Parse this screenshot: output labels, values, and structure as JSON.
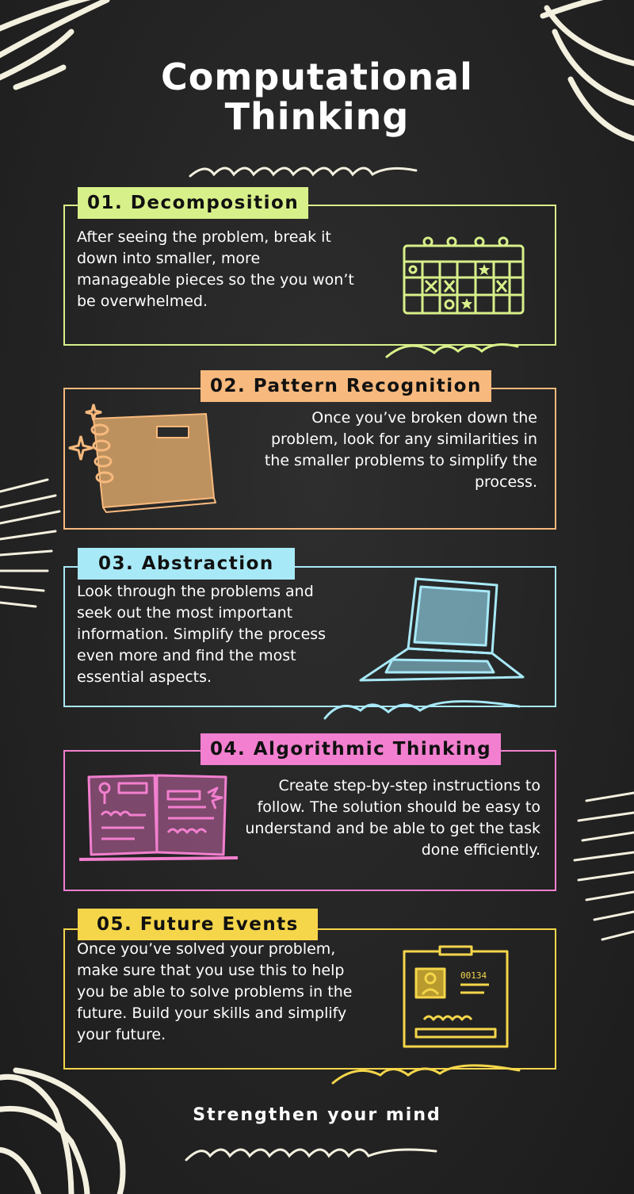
{
  "title_line1": "Computational",
  "title_line2": "Thinking",
  "sections": [
    {
      "label": "01. Decomposition",
      "text": "After seeing the problem, break it down into smaller, more manageable pieces so the you won’t be overwhelmed.",
      "color": "#d8f08a",
      "icon": "calendar-icon"
    },
    {
      "label": "02. Pattern Recognition",
      "text": "Once you’ve broken down the problem, look for any similarities in the smaller problems to simplify the process.",
      "color": "#f7b97d",
      "icon": "notebook-icon"
    },
    {
      "label": "03. Abstraction",
      "text": "Look through the problems and seek out the most important information. Simplify the process even more and find the most essential aspects.",
      "color": "#a8e9f7",
      "icon": "laptop-icon"
    },
    {
      "label": "04. Algorithmic Thinking",
      "text": "Create step-by-step instructions to follow. The solution should be easy to understand and be able to get the task done efficiently.",
      "color": "#f27fcf",
      "icon": "open-book-icon"
    },
    {
      "label": "05. Future Events",
      "text": "Once you’ve solved your problem, make sure that you use this to help you be able to solve problems in the future. Build your skills and simplify your future.",
      "color": "#f5d64a",
      "icon": "id-card-icon",
      "card_number": "00134"
    }
  ],
  "footer": "Strengthen your mind",
  "colors": {
    "background": "#242424",
    "chalk": "#f4f0df"
  }
}
